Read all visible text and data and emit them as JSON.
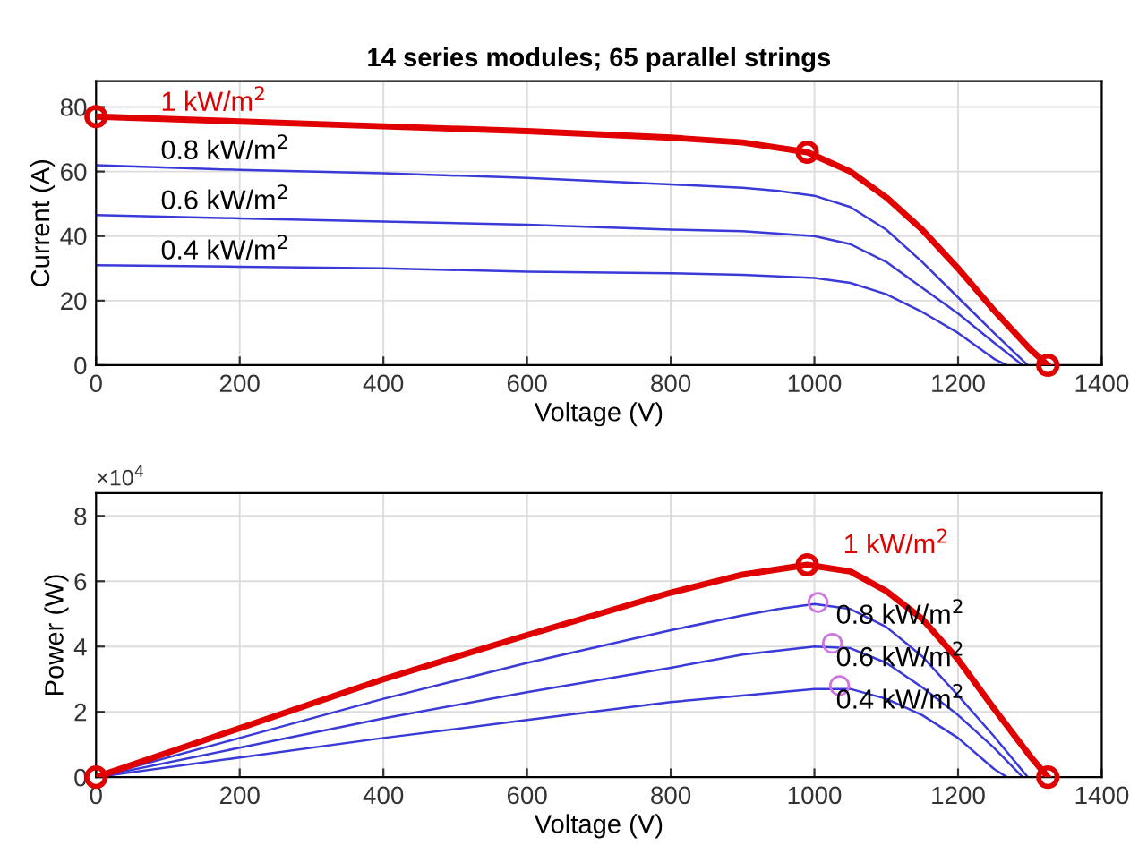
{
  "chart_data": [
    {
      "type": "line",
      "title": "14 series modules; 65 parallel strings",
      "xlabel": "Voltage (V)",
      "ylabel": "Current (A)",
      "xlim": [
        0,
        1400
      ],
      "xticks": [
        0,
        200,
        400,
        600,
        800,
        1000,
        1200,
        1400
      ],
      "ylim": [
        0,
        88
      ],
      "yticks": [
        0,
        20,
        40,
        60,
        80
      ],
      "grid": true,
      "legend": false,
      "marker": "none",
      "line_style": "solid",
      "series": [
        {
          "name": "1 kW/m$^{2}$",
          "color": "#e00000",
          "x": [
            0,
            200,
            400,
            600,
            800,
            900,
            990,
            1050,
            1100,
            1150,
            1200,
            1250,
            1300,
            1325
          ],
          "values": [
            77,
            75.5,
            74,
            72.5,
            70.5,
            69,
            66,
            60,
            52,
            42,
            30,
            17,
            5,
            0
          ]
        },
        {
          "name": "0.8 kW/m$^{2}$",
          "color": "#3a3ad8",
          "x": [
            0,
            200,
            400,
            600,
            800,
            900,
            950,
            1000,
            1050,
            1100,
            1150,
            1200,
            1250,
            1297
          ],
          "values": [
            62,
            60.5,
            59.5,
            58,
            56,
            55,
            54,
            52.5,
            49,
            42,
            32,
            21,
            10,
            0
          ]
        },
        {
          "name": "0.6 kW/m$^{2}$",
          "color": "#3a3ad8",
          "x": [
            0,
            200,
            400,
            600,
            800,
            900,
            1000,
            1050,
            1100,
            1150,
            1200,
            1250,
            1290
          ],
          "values": [
            46.5,
            45.5,
            44.5,
            43.5,
            42,
            41.5,
            40,
            37.5,
            32,
            24,
            16,
            7,
            0
          ]
        },
        {
          "name": "0.4 kW/m$^{2}$",
          "color": "#3a3ad8",
          "x": [
            0,
            200,
            400,
            600,
            800,
            900,
            1000,
            1050,
            1100,
            1150,
            1200,
            1250,
            1268
          ],
          "values": [
            31,
            30.5,
            30,
            29,
            28.5,
            28,
            27,
            25.5,
            22,
            16.5,
            10,
            2,
            0
          ]
        },
        {
          "type": "scatter",
          "marker": "circle",
          "color": "#e00000",
          "x": [
            0,
            990,
            1325
          ],
          "values": [
            77,
            66,
            0
          ]
        }
      ]
    },
    {
      "type": "line",
      "xlabel": "Voltage (V)",
      "ylabel": "Power (W)",
      "annotations": [
        "×10$^{4}$"
      ],
      "xlim": [
        0,
        1400
      ],
      "xticks": [
        0,
        200,
        400,
        600,
        800,
        1000,
        1200,
        1400
      ],
      "ylim": [
        0,
        8.7
      ],
      "yticks": [
        0,
        2,
        4,
        6,
        8
      ],
      "grid": true,
      "legend": false,
      "marker": "none",
      "line_style": "solid",
      "series": [
        {
          "name": "1 kW/m$^{2}$",
          "color": "#e00000",
          "x": [
            0,
            200,
            400,
            600,
            800,
            900,
            990,
            1050,
            1100,
            1150,
            1200,
            1250,
            1300,
            1325
          ],
          "values": [
            0,
            1.5,
            3.0,
            4.35,
            5.65,
            6.2,
            6.5,
            6.3,
            5.7,
            4.85,
            3.6,
            2.1,
            0.65,
            0
          ]
        },
        {
          "name": "0.8 kW/m$^{2}$",
          "color": "#3a3ad8",
          "x": [
            0,
            200,
            400,
            600,
            800,
            900,
            950,
            1000,
            1050,
            1100,
            1150,
            1200,
            1250,
            1297
          ],
          "values": [
            0,
            1.2,
            2.4,
            3.5,
            4.5,
            4.95,
            5.15,
            5.3,
            5.15,
            4.6,
            3.7,
            2.5,
            1.25,
            0
          ]
        },
        {
          "name": "0.6 kW/m$^{2}$",
          "color": "#3a3ad8",
          "x": [
            0,
            200,
            400,
            600,
            800,
            900,
            1000,
            1050,
            1100,
            1150,
            1200,
            1250,
            1290
          ],
          "values": [
            0,
            0.9,
            1.8,
            2.6,
            3.35,
            3.75,
            4.0,
            3.95,
            3.5,
            2.75,
            1.9,
            0.9,
            0
          ]
        },
        {
          "name": "0.4 kW/m$^{2}$",
          "color": "#3a3ad8",
          "x": [
            0,
            200,
            400,
            600,
            800,
            900,
            1000,
            1050,
            1100,
            1150,
            1200,
            1250,
            1268
          ],
          "values": [
            0,
            0.6,
            1.2,
            1.75,
            2.3,
            2.5,
            2.7,
            2.7,
            2.4,
            1.9,
            1.2,
            0.25,
            0
          ]
        },
        {
          "type": "scatter",
          "marker": "circle",
          "color": "#e00000",
          "x": [
            0,
            990,
            1325
          ],
          "values": [
            0,
            6.5,
            0
          ]
        },
        {
          "type": "scatter",
          "marker": "circle",
          "color": "#cc77dd",
          "x": [
            1005,
            1025,
            1035
          ],
          "values": [
            5.35,
            4.1,
            2.8
          ]
        }
      ]
    }
  ]
}
